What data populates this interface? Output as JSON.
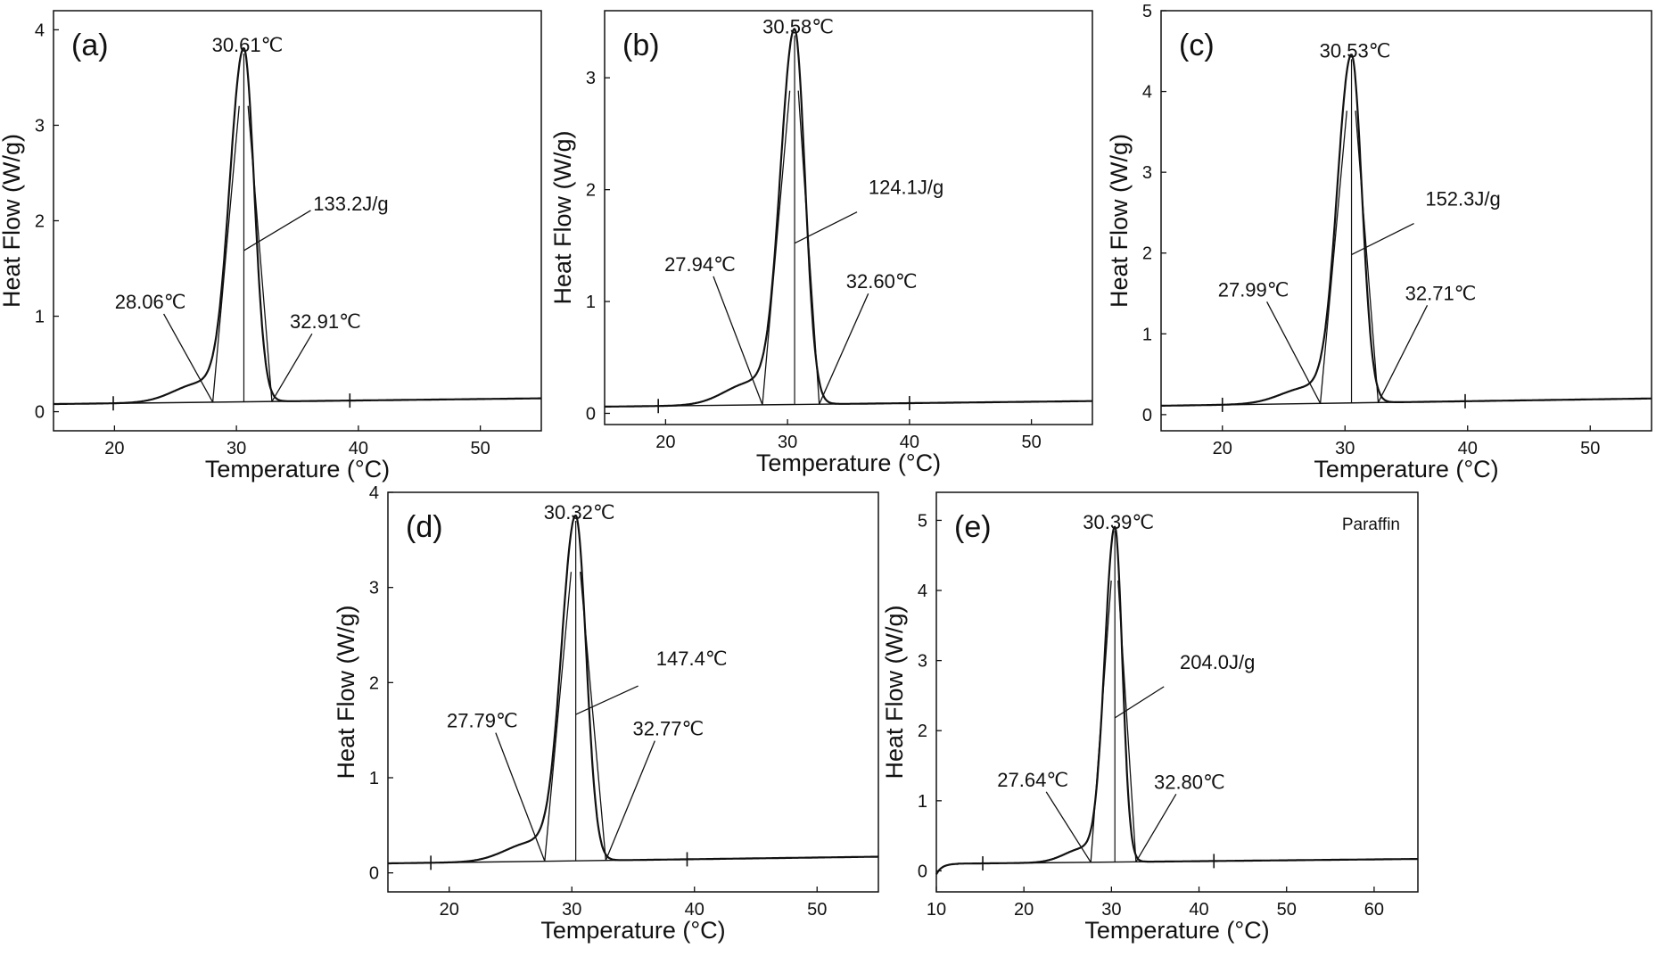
{
  "chart_data": [
    {
      "type": "line",
      "panel_label": "(a)",
      "xlabel": "Temperature (°C)",
      "ylabel": "Heat Flow (W/g)",
      "xlim": [
        15,
        55
      ],
      "ylim": [
        -0.2,
        4.2
      ],
      "xticks": [
        20,
        30,
        40,
        50
      ],
      "yticks": [
        0,
        1,
        2,
        3,
        4
      ],
      "peak": 30.61,
      "onset": 28.06,
      "endset": 32.91,
      "peak_height": 3.75,
      "baseline": [
        0.08,
        0.14
      ],
      "integration_limits": [
        19.9,
        39.3
      ],
      "annotations": {
        "peak": "30.61℃",
        "onset": "28.06℃",
        "endset": "32.91℃",
        "enthalpy": "133.2J/g"
      }
    },
    {
      "type": "line",
      "panel_label": "(b)",
      "xlabel": "Temperature (°C)",
      "ylabel": "Heat Flow (W/g)",
      "xlim": [
        15,
        55
      ],
      "ylim": [
        -0.1,
        3.6
      ],
      "xticks": [
        20,
        30,
        40,
        50
      ],
      "yticks": [
        0,
        1,
        2,
        3
      ],
      "peak": 30.58,
      "onset": 27.94,
      "endset": 32.6,
      "peak_height": 3.38,
      "baseline": [
        0.06,
        0.11
      ],
      "integration_limits": [
        19.4,
        40.0
      ],
      "annotations": {
        "peak": "30.58℃",
        "onset": "27.94℃",
        "endset": "32.60℃",
        "enthalpy": "124.1J/g"
      }
    },
    {
      "type": "line",
      "panel_label": "(c)",
      "xlabel": "Temperature (°C)",
      "ylabel": "Heat Flow (W/g)",
      "xlim": [
        15,
        55
      ],
      "ylim": [
        -0.2,
        5.0
      ],
      "xticks": [
        20,
        30,
        40,
        50
      ],
      "yticks": [
        0,
        1,
        2,
        3,
        4,
        5
      ],
      "peak": 30.53,
      "onset": 27.99,
      "endset": 32.71,
      "peak_height": 4.4,
      "baseline": [
        0.11,
        0.2
      ],
      "integration_limits": [
        20.0,
        39.8
      ],
      "annotations": {
        "peak": "30.53℃",
        "onset": "27.99℃",
        "endset": "32.71℃",
        "enthalpy": "152.3J/g"
      }
    },
    {
      "type": "line",
      "panel_label": "(d)",
      "xlabel": "Temperature (°C)",
      "ylabel": "Heat Flow (W/g)",
      "xlim": [
        15,
        55
      ],
      "ylim": [
        -0.2,
        4.0
      ],
      "xticks": [
        20,
        30,
        40,
        50
      ],
      "yticks": [
        0,
        1,
        2,
        3,
        4
      ],
      "peak": 30.32,
      "onset": 27.79,
      "endset": 32.77,
      "peak_height": 3.7,
      "baseline": [
        0.1,
        0.17
      ],
      "integration_limits": [
        18.5,
        39.4
      ],
      "annotations": {
        "peak": "30.32℃",
        "onset": "27.79℃",
        "endset": "32.77℃",
        "enthalpy": "147.4℃"
      }
    },
    {
      "type": "line",
      "panel_label": "(e)",
      "legend": "Paraffin",
      "xlabel": "Temperature (°C)",
      "ylabel": "Heat Flow (W/g)",
      "xlim": [
        10,
        65
      ],
      "ylim": [
        -0.3,
        5.4
      ],
      "xticks": [
        10,
        20,
        30,
        40,
        50,
        60
      ],
      "yticks": [
        0,
        1,
        2,
        3,
        4,
        5
      ],
      "peak": 30.39,
      "onset": 27.64,
      "endset": 32.8,
      "peak_height": 4.85,
      "baseline": [
        0.1,
        0.17
      ],
      "integration_limits": [
        15.3,
        41.7
      ],
      "annotations": {
        "peak": "30.39℃",
        "onset": "27.64℃",
        "endset": "32.80℃",
        "enthalpy": "204.0J/g"
      }
    }
  ]
}
